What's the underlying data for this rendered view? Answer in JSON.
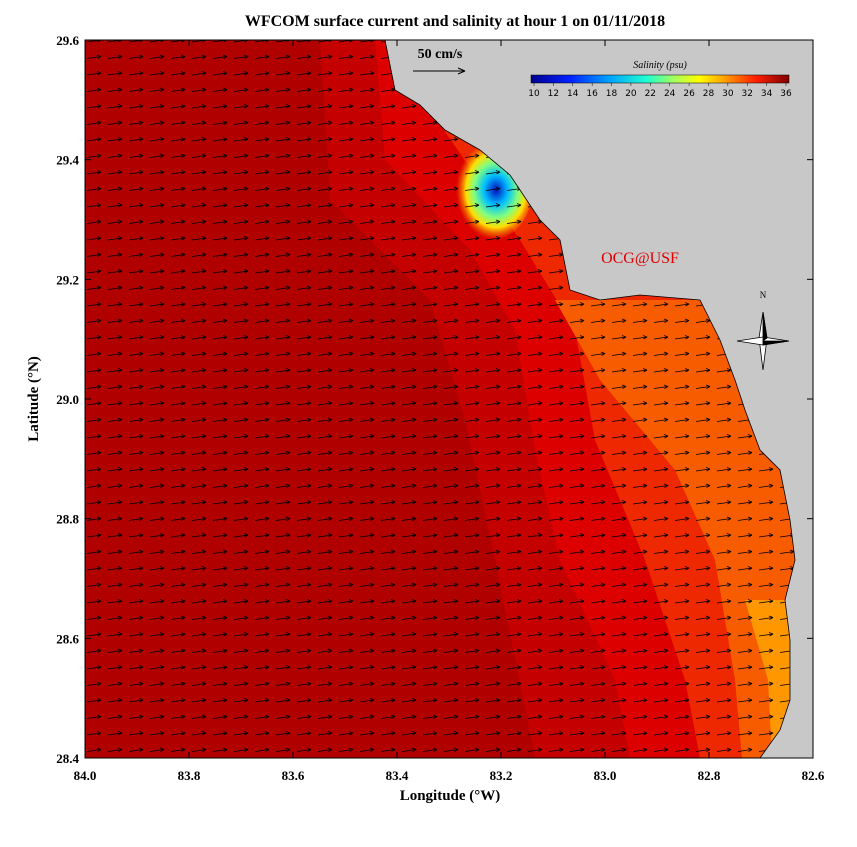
{
  "map": {
    "title": "WFCOM surface current and salinity at hour 1 on 01/11/2018",
    "x_axis": {
      "label": "Longitude (°W)",
      "lim": [
        84.0,
        82.6
      ],
      "ticks": [
        {
          "value": 84.0,
          "label": "84.0"
        },
        {
          "value": 83.8,
          "label": "83.8"
        },
        {
          "value": 83.6,
          "label": "83.6"
        },
        {
          "value": 83.4,
          "label": "83.4"
        },
        {
          "value": 83.2,
          "label": "83.2"
        },
        {
          "value": 83.0,
          "label": "83.0"
        },
        {
          "value": 82.8,
          "label": "82.8"
        },
        {
          "value": 82.6,
          "label": "82.6"
        }
      ]
    },
    "y_axis": {
      "label": "Latitude (°N)",
      "lim": [
        28.4,
        29.6
      ],
      "ticks": [
        {
          "value": 28.4,
          "label": "28.4"
        },
        {
          "value": 28.6,
          "label": "28.6"
        },
        {
          "value": 28.8,
          "label": "28.8"
        },
        {
          "value": 29.0,
          "label": "29.0"
        },
        {
          "value": 29.2,
          "label": "29.2"
        },
        {
          "value": 29.4,
          "label": "29.4"
        },
        {
          "value": 29.6,
          "label": "29.6"
        }
      ]
    },
    "scale_label": "50 cm/s",
    "colorbar": {
      "title": "Salinity (psu)",
      "lim": [
        10,
        36
      ],
      "ticks": [
        10,
        12,
        14,
        16,
        18,
        20,
        22,
        24,
        26,
        28,
        30,
        32,
        34,
        36
      ]
    },
    "watermark": "OCG@USF",
    "north_label": "N"
  }
}
